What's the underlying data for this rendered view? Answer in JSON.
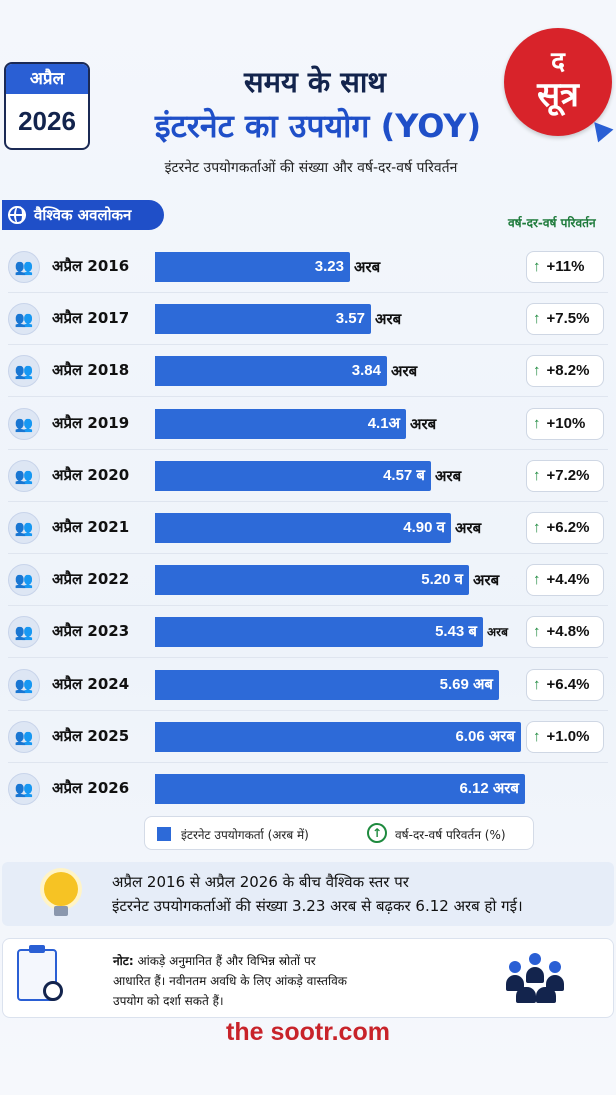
{
  "header": {
    "calendar_month": "अप्रैल",
    "calendar_year": "2026",
    "title_line1": "समय के साथ",
    "title_line2": "इंटरनेट का उपयोग (YOY)",
    "subtitle": "इंटरनेट उपयोगकर्ताओं की संख्या और वर्ष-दर-वर्ष परिवर्तन",
    "logo_top": "द",
    "logo_bottom": "सूत्र"
  },
  "section": {
    "label": "वैश्विक अवलोकन",
    "yoy_header": "वर्ष-दर-वर्ष परिवर्तन"
  },
  "chart_data": {
    "type": "bar",
    "orientation": "horizontal",
    "categories": [
      "अप्रैल 2016",
      "अप्रैल 2017",
      "अप्रैल 2018",
      "अप्रैल 2019",
      "अप्रैल 2020",
      "अप्रैल 2021",
      "अप्रैल 2022",
      "अप्रैल 2023",
      "अप्रैल 2024",
      "अप्रैल 2025",
      "अप्रैल 2026"
    ],
    "values": [
      3.23,
      3.57,
      3.84,
      4.15,
      4.57,
      4.9,
      5.2,
      5.43,
      5.69,
      6.06,
      6.12
    ],
    "value_labels": [
      "3.23",
      "3.57",
      "3.84",
      "4.1अ",
      "4.57 ब",
      "4.90 व",
      "5.20 व",
      "5.43 ब",
      "5.69 अब",
      "6.06 अरब",
      "6.12 अरब"
    ],
    "units": [
      "अरब",
      "अरब",
      "अरब",
      "अरब",
      "अरब",
      "अरब",
      "अरब",
      "अरब",
      "",
      "",
      ""
    ],
    "yoy_change": [
      "+11%",
      "+7.5%",
      "+8.2%",
      "+10%",
      "+7.2%",
      "+6.2%",
      "+4.4%",
      "+4.8%",
      "+6.4%",
      "+1.0%",
      ""
    ],
    "xlim": [
      0,
      7.0
    ],
    "bar_color": "#2d6ad8",
    "up_color": "#1e8a3e"
  },
  "legend": {
    "series_label": "इंटरनेट उपयोगकर्ता (अरब में)",
    "change_label": "वर्ष-दर-वर्ष परिवर्तन (%)",
    "up_glyph": "↑"
  },
  "insight": {
    "line1": "अप्रैल 2016 से अप्रैल 2026 के बीच वैश्विक स्तर पर",
    "line2": "इंटरनेट उपयोगकर्ताओं की संख्या 3.23 अरब से बढ़कर 6.12 अरब हो गई।"
  },
  "note": {
    "prefix": "नोट:",
    "text": "आंकड़े अनुमानित हैं और विभिन्न स्रोतों पर आधारित हैं। नवीनतम अवधि के लिए आंकड़े वास्तविक उपयोग को दर्शा सकते हैं।"
  },
  "footer": "the sootr.com"
}
